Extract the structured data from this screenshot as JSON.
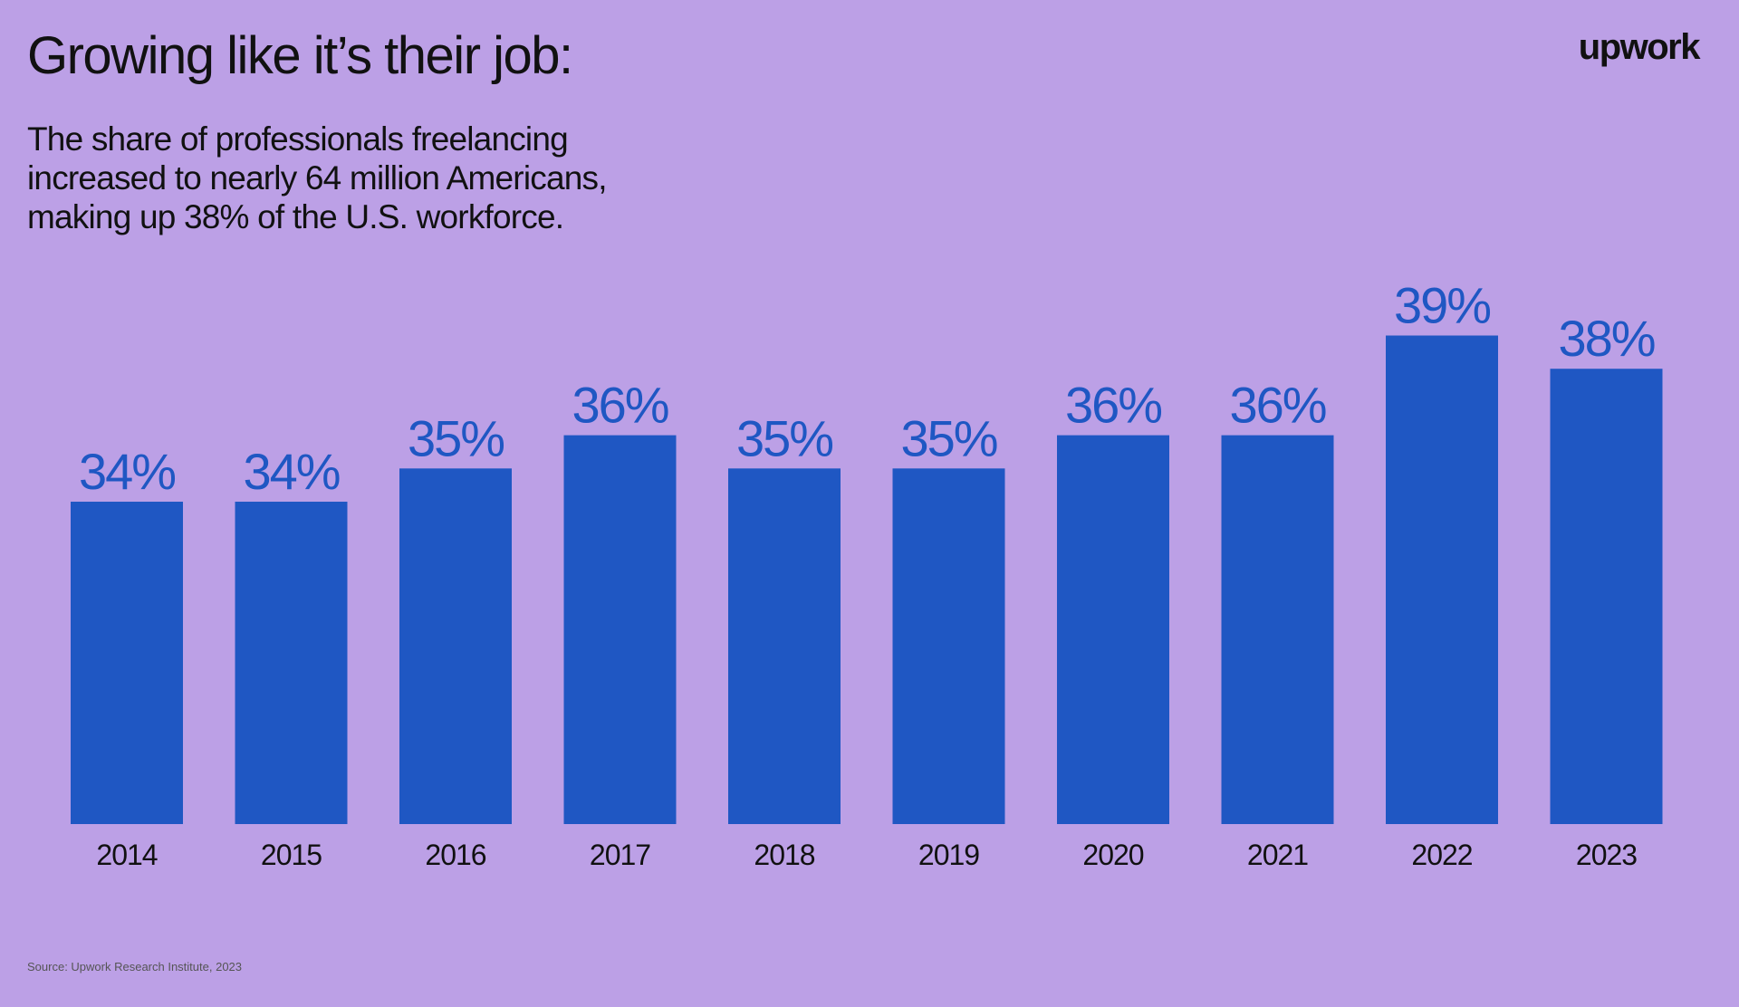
{
  "header": {
    "title": "Growing like it’s their job:",
    "subtitle_lines": [
      "The share of professionals freelancing",
      "increased to nearly 64 million Americans,",
      "making up 38% of the U.S. workforce."
    ],
    "logo": "upwork"
  },
  "footer": {
    "source": "Source: Upwork Research Institute, 2023"
  },
  "colors": {
    "background": "#bca0e6",
    "bar": "#1f57c3",
    "text": "#111111"
  },
  "chart_data": {
    "type": "bar",
    "title": "Growing like it’s their job:",
    "categories": [
      "2014",
      "2015",
      "2016",
      "2017",
      "2018",
      "2019",
      "2020",
      "2021",
      "2022",
      "2023"
    ],
    "values": [
      34,
      34,
      35,
      36,
      35,
      35,
      36,
      36,
      39,
      38
    ],
    "value_labels": [
      "34%",
      "34%",
      "35%",
      "36%",
      "35%",
      "35%",
      "36%",
      "36%",
      "39%",
      "38%"
    ],
    "xlabel": "",
    "ylabel": "",
    "ylim": [
      24.3,
      40
    ],
    "grid": false,
    "legend": "none"
  }
}
